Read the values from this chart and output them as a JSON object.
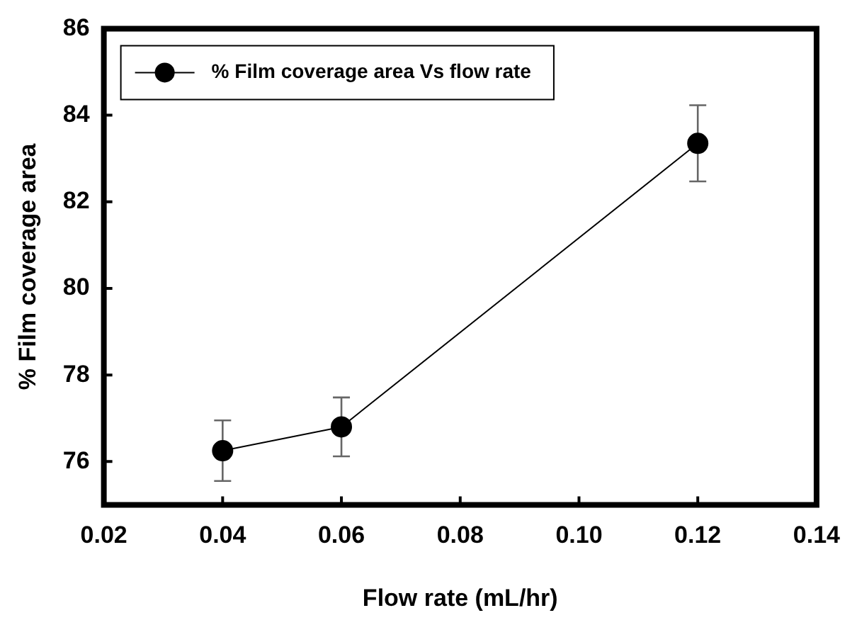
{
  "chart_data": {
    "type": "line",
    "xlabel": "Flow rate (mL/hr)",
    "ylabel": "% Film coverage area",
    "x": [
      0.04,
      0.06,
      0.12
    ],
    "series": [
      {
        "name": "% Film coverage area Vs flow rate",
        "color": "#000000",
        "values": [
          76.25,
          76.8,
          83.35
        ],
        "errors": [
          0.7,
          0.68,
          0.88
        ]
      }
    ],
    "xlim": [
      0.02,
      0.14
    ],
    "xticks": [
      {
        "value": 0.02,
        "label": "0.02"
      },
      {
        "value": 0.04,
        "label": "0.04"
      },
      {
        "value": 0.06,
        "label": "0.06"
      },
      {
        "value": 0.08,
        "label": "0.08"
      },
      {
        "value": 0.1,
        "label": "0.10"
      },
      {
        "value": 0.12,
        "label": "0.12"
      },
      {
        "value": 0.14,
        "label": "0.14"
      }
    ],
    "ylim": [
      75,
      86
    ],
    "yticks": [
      76,
      78,
      80,
      82,
      84,
      86
    ],
    "grid": false,
    "legend": "top left",
    "marker": "circle",
    "line_style": "solid"
  }
}
